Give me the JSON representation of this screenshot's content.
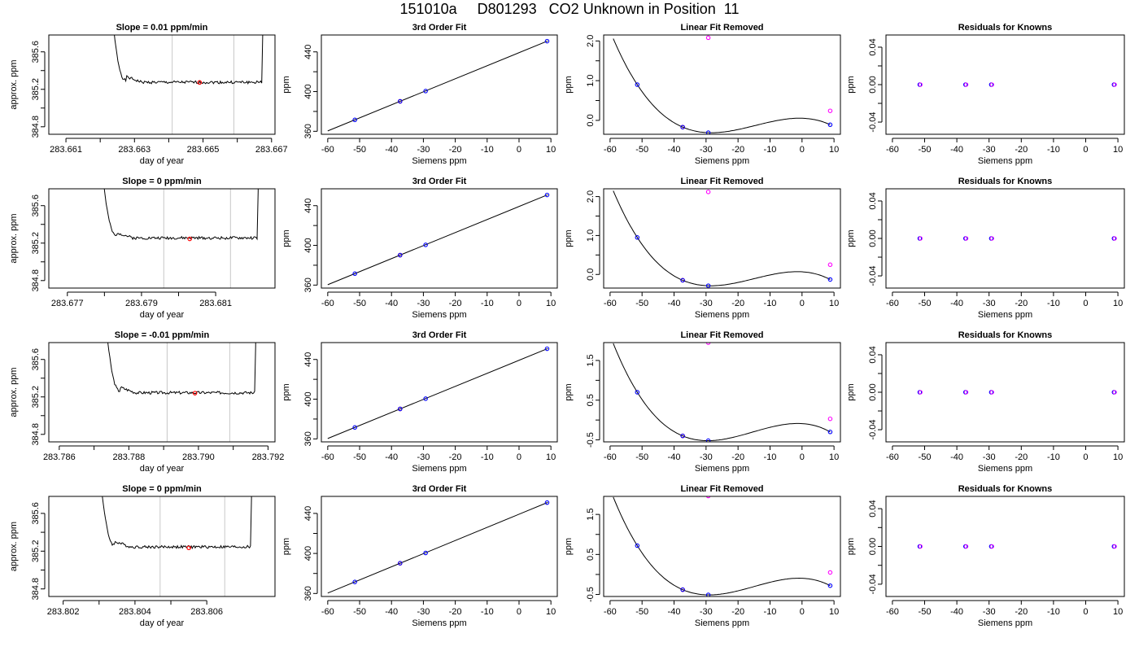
{
  "suptitle": "151010a     D801293   CO2 Unknown in Position  11",
  "colors": {
    "trace": "#000000",
    "window": "#c8c8c8",
    "sample": "#ff0000",
    "known": "#0000ff",
    "residual": "#ff00ff",
    "fit": "#000000"
  },
  "chart_data": [
    {
      "id": "r1-drift",
      "type": "line",
      "title": "Slope =  0.01  ppm/min",
      "xlabel": "day of year",
      "ylabel": "approx. ppm",
      "xlim": [
        283.6605,
        283.6671
      ],
      "ylim": [
        384.72,
        385.78
      ],
      "xticks": [
        283.661,
        283.663,
        283.665,
        283.667
      ],
      "xtick_labels": [
        "283.661",
        "283.663",
        "283.665",
        "283.667"
      ],
      "yticks": [
        384.8,
        385.2,
        385.6
      ],
      "ytick_labels": [
        "384.8",
        "385.2",
        "385.6"
      ],
      "vlines": [
        283.6641,
        283.6659
      ],
      "trace_x": [
        283.6622,
        283.6668
      ],
      "trace_level": 385.275,
      "seed": 1,
      "points": [
        {
          "x": 283.6649,
          "y": 385.273
        }
      ]
    },
    {
      "id": "r1-fit",
      "type": "scatter",
      "title": "3rd Order Fit",
      "xlabel": "Siemens ppm",
      "ylabel": "ppm",
      "xlim": [
        -62,
        12
      ],
      "ylim": [
        357,
        457
      ],
      "xticks": [
        -60,
        -50,
        -40,
        -30,
        -20,
        -10,
        0,
        10
      ],
      "xtick_labels": [
        "-60",
        "-50",
        "-40",
        "-30",
        "-20",
        "-10",
        "0",
        "10"
      ],
      "yticks": [
        360,
        400,
        440
      ],
      "ytick_labels": [
        "360",
        "400",
        "440"
      ],
      "line": {
        "x": [
          -60,
          9
        ],
        "y": [
          360.4,
          451.0
        ]
      },
      "points": [
        {
          "x": -51.5,
          "y": 371.5,
          "c": "known"
        },
        {
          "x": -37.3,
          "y": 390.2,
          "c": "sample"
        },
        {
          "x": -37.3,
          "y": 390.2,
          "c": "known"
        },
        {
          "x": -29.3,
          "y": 400.5,
          "c": "known"
        },
        {
          "x": 8.8,
          "y": 450.8,
          "c": "known"
        }
      ]
    },
    {
      "id": "r1-resid",
      "type": "scatter",
      "title": "Linear Fit Removed",
      "xlabel": "Siemens ppm",
      "ylabel": "ppm",
      "xlim": [
        -62,
        12
      ],
      "ylim": [
        -0.35,
        2.15
      ],
      "xticks": [
        -60,
        -50,
        -40,
        -30,
        -20,
        -10,
        0,
        10
      ],
      "xtick_labels": [
        "-60",
        "-50",
        "-40",
        "-30",
        "-20",
        "-10",
        "0",
        "10"
      ],
      "yticks": [
        0.0,
        1.0,
        2.0
      ],
      "ytick_labels": [
        "0.0",
        "1.0",
        "2.0"
      ],
      "curve_points": [
        [
          -51.5,
          0.9
        ],
        [
          -37.3,
          -0.17
        ],
        [
          -29.3,
          -0.31
        ],
        [
          8.8,
          -0.11
        ]
      ],
      "curve_x": [
        -59,
        8.8
      ],
      "points": [
        {
          "x": -51.5,
          "y": 0.9,
          "c": "known"
        },
        {
          "x": -37.3,
          "y": -0.17,
          "c": "sample"
        },
        {
          "x": -37.3,
          "y": -0.17,
          "c": "known"
        },
        {
          "x": -29.3,
          "y": -0.31,
          "c": "known"
        },
        {
          "x": 8.8,
          "y": -0.11,
          "c": "known"
        },
        {
          "x": -29.3,
          "y": 2.08,
          "c": "residual"
        },
        {
          "x": 8.8,
          "y": 0.24,
          "c": "residual"
        }
      ]
    },
    {
      "id": "r1-known",
      "type": "scatter",
      "title": "Residuals for Knowns",
      "xlabel": "Siemens ppm",
      "ylabel": "ppm",
      "xlim": [
        -62,
        12
      ],
      "ylim": [
        -0.053,
        0.053
      ],
      "xticks": [
        -60,
        -50,
        -40,
        -30,
        -20,
        -10,
        0,
        10
      ],
      "xtick_labels": [
        "-60",
        "-50",
        "-40",
        "-30",
        "-20",
        "-10",
        "0",
        "10"
      ],
      "yticks": [
        -0.04,
        0.0,
        0.04
      ],
      "ytick_labels": [
        "-0.04",
        "0.00",
        "0.04"
      ],
      "points": [
        {
          "x": -51.5,
          "y": 0,
          "c": "mixed"
        },
        {
          "x": -37.3,
          "y": 0,
          "c": "mixed"
        },
        {
          "x": -29.3,
          "y": 0,
          "c": "mixed"
        },
        {
          "x": 8.8,
          "y": 0,
          "c": "mixed"
        }
      ]
    },
    {
      "id": "r2-drift",
      "type": "line",
      "title": "Slope =  0  ppm/min",
      "xlabel": "day of year",
      "ylabel": "approx. ppm",
      "xlim": [
        283.6765,
        283.6826
      ],
      "ylim": [
        384.72,
        385.78
      ],
      "xticks": [
        283.677,
        283.679,
        283.681
      ],
      "xtick_labels": [
        "283.677",
        "283.679",
        "283.681"
      ],
      "vlines": [
        283.6796,
        283.6814
      ],
      "trace_x": [
        283.6778,
        283.6822
      ],
      "trace_level": 385.255,
      "seed": 2,
      "yticks": [
        384.8,
        385.2,
        385.6
      ],
      "ytick_labels": [
        "384.8",
        "385.2",
        "385.6"
      ],
      "points": [
        {
          "x": 283.6803,
          "y": 385.245
        }
      ]
    },
    {
      "id": "r2-fit",
      "type": "scatter",
      "title": "3rd Order Fit",
      "xlabel": "Siemens ppm",
      "ylabel": "ppm",
      "xlim": [
        -62,
        12
      ],
      "ylim": [
        357,
        457
      ],
      "xticks": [
        -60,
        -50,
        -40,
        -30,
        -20,
        -10,
        0,
        10
      ],
      "xtick_labels": [
        "-60",
        "-50",
        "-40",
        "-30",
        "-20",
        "-10",
        "0",
        "10"
      ],
      "yticks": [
        360,
        400,
        440
      ],
      "ytick_labels": [
        "360",
        "400",
        "440"
      ],
      "line": {
        "x": [
          -60,
          9
        ],
        "y": [
          360.4,
          451.0
        ]
      },
      "points": [
        {
          "x": -51.5,
          "y": 371.5,
          "c": "known"
        },
        {
          "x": -37.3,
          "y": 390.2,
          "c": "sample"
        },
        {
          "x": -37.3,
          "y": 390.2,
          "c": "known"
        },
        {
          "x": -29.3,
          "y": 400.5,
          "c": "known"
        },
        {
          "x": 8.8,
          "y": 450.8,
          "c": "known"
        }
      ]
    },
    {
      "id": "r2-resid",
      "type": "scatter",
      "title": "Linear Fit Removed",
      "xlabel": "Siemens ppm",
      "ylabel": "ppm",
      "xlim": [
        -62,
        12
      ],
      "ylim": [
        -0.35,
        2.2
      ],
      "xticks": [
        -60,
        -50,
        -40,
        -30,
        -20,
        -10,
        0,
        10
      ],
      "xtick_labels": [
        "-60",
        "-50",
        "-40",
        "-30",
        "-20",
        "-10",
        "0",
        "10"
      ],
      "yticks": [
        0.0,
        1.0,
        2.0
      ],
      "ytick_labels": [
        "0.0",
        "1.0",
        "2.0"
      ],
      "curve_points": [
        [
          -51.5,
          0.95
        ],
        [
          -37.3,
          -0.15
        ],
        [
          -29.3,
          -0.29
        ],
        [
          8.8,
          -0.13
        ]
      ],
      "curve_x": [
        -59,
        8.8
      ],
      "points": [
        {
          "x": -51.5,
          "y": 0.95,
          "c": "known"
        },
        {
          "x": -37.3,
          "y": -0.15,
          "c": "sample"
        },
        {
          "x": -37.3,
          "y": -0.15,
          "c": "known"
        },
        {
          "x": -29.3,
          "y": -0.29,
          "c": "known"
        },
        {
          "x": 8.8,
          "y": -0.13,
          "c": "known"
        },
        {
          "x": -29.3,
          "y": 2.12,
          "c": "residual"
        },
        {
          "x": 8.8,
          "y": 0.25,
          "c": "residual"
        }
      ]
    },
    {
      "id": "r2-known",
      "type": "scatter",
      "title": "Residuals for Knowns",
      "xlabel": "Siemens ppm",
      "ylabel": "ppm",
      "xlim": [
        -62,
        12
      ],
      "ylim": [
        -0.053,
        0.053
      ],
      "xticks": [
        -60,
        -50,
        -40,
        -30,
        -20,
        -10,
        0,
        10
      ],
      "xtick_labels": [
        "-60",
        "-50",
        "-40",
        "-30",
        "-20",
        "-10",
        "0",
        "10"
      ],
      "yticks": [
        -0.04,
        0.0,
        0.04
      ],
      "ytick_labels": [
        "-0.04",
        "0.00",
        "0.04"
      ],
      "points": [
        {
          "x": -51.5,
          "y": 0,
          "c": "mixed"
        },
        {
          "x": -37.3,
          "y": 0,
          "c": "mixed"
        },
        {
          "x": -29.3,
          "y": 0,
          "c": "mixed"
        },
        {
          "x": 8.8,
          "y": 0,
          "c": "mixed"
        }
      ]
    },
    {
      "id": "r3-drift",
      "type": "line",
      "title": "Slope =  -0.01  ppm/min",
      "xlabel": "day of year",
      "ylabel": "approx. ppm",
      "xlim": [
        283.7857,
        283.7922
      ],
      "ylim": [
        384.72,
        385.78
      ],
      "xticks": [
        283.786,
        283.788,
        283.79,
        283.792
      ],
      "xtick_labels": [
        "283.786",
        "283.788",
        "283.790",
        "283.792"
      ],
      "yticks": [
        384.8,
        385.2,
        385.6
      ],
      "ytick_labels": [
        "384.8",
        "385.2",
        "385.6"
      ],
      "vlines": [
        283.7891,
        283.7909
      ],
      "trace_x": [
        283.7872,
        283.7917
      ],
      "trace_level": 385.245,
      "seed": 3,
      "points": [
        {
          "x": 283.7899,
          "y": 385.24
        }
      ]
    },
    {
      "id": "r3-fit",
      "type": "scatter",
      "title": "3rd Order Fit",
      "xlabel": "Siemens ppm",
      "ylabel": "ppm",
      "xlim": [
        -62,
        12
      ],
      "ylim": [
        357,
        457
      ],
      "xticks": [
        -60,
        -50,
        -40,
        -30,
        -20,
        -10,
        0,
        10
      ],
      "xtick_labels": [
        "-60",
        "-50",
        "-40",
        "-30",
        "-20",
        "-10",
        "0",
        "10"
      ],
      "yticks": [
        360,
        400,
        440
      ],
      "ytick_labels": [
        "360",
        "400",
        "440"
      ],
      "line": {
        "x": [
          -60,
          9
        ],
        "y": [
          360.4,
          451.0
        ]
      },
      "points": [
        {
          "x": -51.5,
          "y": 371.5,
          "c": "known"
        },
        {
          "x": -37.3,
          "y": 390.2,
          "c": "sample"
        },
        {
          "x": -37.3,
          "y": 390.2,
          "c": "known"
        },
        {
          "x": -29.3,
          "y": 400.5,
          "c": "known"
        },
        {
          "x": 8.8,
          "y": 450.8,
          "c": "known"
        }
      ]
    },
    {
      "id": "r3-resid",
      "type": "scatter",
      "title": "Linear Fit Removed",
      "xlabel": "Siemens ppm",
      "ylabel": "ppm",
      "xlim": [
        -62,
        12
      ],
      "ylim": [
        -0.55,
        1.95
      ],
      "xticks": [
        -60,
        -50,
        -40,
        -30,
        -20,
        -10,
        0,
        10
      ],
      "xtick_labels": [
        "-60",
        "-50",
        "-40",
        "-30",
        "-20",
        "-10",
        "0",
        "10"
      ],
      "yticks": [
        -0.5,
        0.5,
        1.5
      ],
      "ytick_labels": [
        "-0.5",
        "0.5",
        "1.5"
      ],
      "curve_points": [
        [
          -51.5,
          0.7
        ],
        [
          -37.3,
          -0.4
        ],
        [
          -29.3,
          -0.52
        ],
        [
          8.8,
          -0.3
        ]
      ],
      "curve_x": [
        -59,
        8.8
      ],
      "points": [
        {
          "x": -51.5,
          "y": 0.7,
          "c": "known"
        },
        {
          "x": -37.3,
          "y": -0.4,
          "c": "sample"
        },
        {
          "x": -37.3,
          "y": -0.4,
          "c": "known"
        },
        {
          "x": -29.3,
          "y": -0.52,
          "c": "known"
        },
        {
          "x": 8.8,
          "y": -0.3,
          "c": "known"
        },
        {
          "x": -29.3,
          "y": 1.95,
          "c": "residual"
        },
        {
          "x": 8.8,
          "y": 0.03,
          "c": "residual"
        }
      ]
    },
    {
      "id": "r3-known",
      "type": "scatter",
      "title": "Residuals for Knowns",
      "xlabel": "Siemens ppm",
      "ylabel": "ppm",
      "xlim": [
        -62,
        12
      ],
      "ylim": [
        -0.053,
        0.053
      ],
      "xticks": [
        -60,
        -50,
        -40,
        -30,
        -20,
        -10,
        0,
        10
      ],
      "xtick_labels": [
        "-60",
        "-50",
        "-40",
        "-30",
        "-20",
        "-10",
        "0",
        "10"
      ],
      "yticks": [
        -0.04,
        0.0,
        0.04
      ],
      "ytick_labels": [
        "-0.04",
        "0.00",
        "0.04"
      ],
      "points": [
        {
          "x": -51.5,
          "y": 0,
          "c": "mixed"
        },
        {
          "x": -37.3,
          "y": 0,
          "c": "mixed"
        },
        {
          "x": -29.3,
          "y": 0,
          "c": "mixed"
        },
        {
          "x": 8.8,
          "y": 0,
          "c": "mixed"
        }
      ]
    },
    {
      "id": "r4-drift",
      "type": "line",
      "title": "Slope =  0  ppm/min",
      "xlabel": "day of year",
      "ylabel": "approx. ppm",
      "xlim": [
        283.8016,
        283.8079
      ],
      "ylim": [
        384.72,
        385.78
      ],
      "xticks": [
        283.802,
        283.804,
        283.806
      ],
      "xtick_labels": [
        "283.802",
        "283.804",
        "283.806"
      ],
      "yticks": [
        384.8,
        385.2,
        385.6
      ],
      "ytick_labels": [
        "384.8",
        "385.2",
        "385.6"
      ],
      "vlines": [
        283.8047,
        283.8065
      ],
      "trace_x": [
        283.8029,
        283.8073
      ],
      "trace_level": 385.245,
      "seed": 4,
      "points": [
        {
          "x": 283.8055,
          "y": 385.235
        }
      ]
    },
    {
      "id": "r4-fit",
      "type": "scatter",
      "title": "3rd Order Fit",
      "xlabel": "Siemens ppm",
      "ylabel": "ppm",
      "xlim": [
        -62,
        12
      ],
      "ylim": [
        357,
        457
      ],
      "xticks": [
        -60,
        -50,
        -40,
        -30,
        -20,
        -10,
        0,
        10
      ],
      "xtick_labels": [
        "-60",
        "-50",
        "-40",
        "-30",
        "-20",
        "-10",
        "0",
        "10"
      ],
      "yticks": [
        360,
        400,
        440
      ],
      "ytick_labels": [
        "360",
        "400",
        "440"
      ],
      "line": {
        "x": [
          -60,
          9
        ],
        "y": [
          360.4,
          451.0
        ]
      },
      "points": [
        {
          "x": -51.5,
          "y": 371.5,
          "c": "known"
        },
        {
          "x": -37.3,
          "y": 390.2,
          "c": "sample"
        },
        {
          "x": -37.3,
          "y": 390.2,
          "c": "known"
        },
        {
          "x": -29.3,
          "y": 400.5,
          "c": "known"
        },
        {
          "x": 8.8,
          "y": 450.8,
          "c": "known"
        }
      ]
    },
    {
      "id": "r4-resid",
      "type": "scatter",
      "title": "Linear Fit Removed",
      "xlabel": "Siemens ppm",
      "ylabel": "ppm",
      "xlim": [
        -62,
        12
      ],
      "ylim": [
        -0.55,
        1.95
      ],
      "xticks": [
        -60,
        -50,
        -40,
        -30,
        -20,
        -10,
        0,
        10
      ],
      "xtick_labels": [
        "-60",
        "-50",
        "-40",
        "-30",
        "-20",
        "-10",
        "0",
        "10"
      ],
      "yticks": [
        -0.5,
        0.5,
        1.5
      ],
      "ytick_labels": [
        "-0.5",
        "0.5",
        "1.5"
      ],
      "curve_points": [
        [
          -51.5,
          0.72
        ],
        [
          -37.3,
          -0.38
        ],
        [
          -29.3,
          -0.51
        ],
        [
          8.8,
          -0.28
        ]
      ],
      "curve_x": [
        -59,
        8.8
      ],
      "points": [
        {
          "x": -51.5,
          "y": 0.72,
          "c": "known"
        },
        {
          "x": -37.3,
          "y": -0.38,
          "c": "sample"
        },
        {
          "x": -37.3,
          "y": -0.38,
          "c": "known"
        },
        {
          "x": -29.3,
          "y": -0.51,
          "c": "known"
        },
        {
          "x": 8.8,
          "y": -0.28,
          "c": "known"
        },
        {
          "x": -29.3,
          "y": 1.96,
          "c": "residual"
        },
        {
          "x": 8.8,
          "y": 0.05,
          "c": "residual"
        }
      ]
    },
    {
      "id": "r4-known",
      "type": "scatter",
      "title": "Residuals for Knowns",
      "xlabel": "Siemens ppm",
      "ylabel": "ppm",
      "xlim": [
        -62,
        12
      ],
      "ylim": [
        -0.053,
        0.053
      ],
      "xticks": [
        -60,
        -50,
        -40,
        -30,
        -20,
        -10,
        0,
        10
      ],
      "xtick_labels": [
        "-60",
        "-50",
        "-40",
        "-30",
        "-20",
        "-10",
        "0",
        "10"
      ],
      "yticks": [
        -0.04,
        0.0,
        0.04
      ],
      "ytick_labels": [
        "-0.04",
        "0.00",
        "0.04"
      ],
      "points": [
        {
          "x": -51.5,
          "y": 0,
          "c": "mixed"
        },
        {
          "x": -37.3,
          "y": 0,
          "c": "mixed"
        },
        {
          "x": -29.3,
          "y": 0,
          "c": "mixed"
        },
        {
          "x": 8.8,
          "y": 0,
          "c": "mixed"
        }
      ]
    }
  ]
}
